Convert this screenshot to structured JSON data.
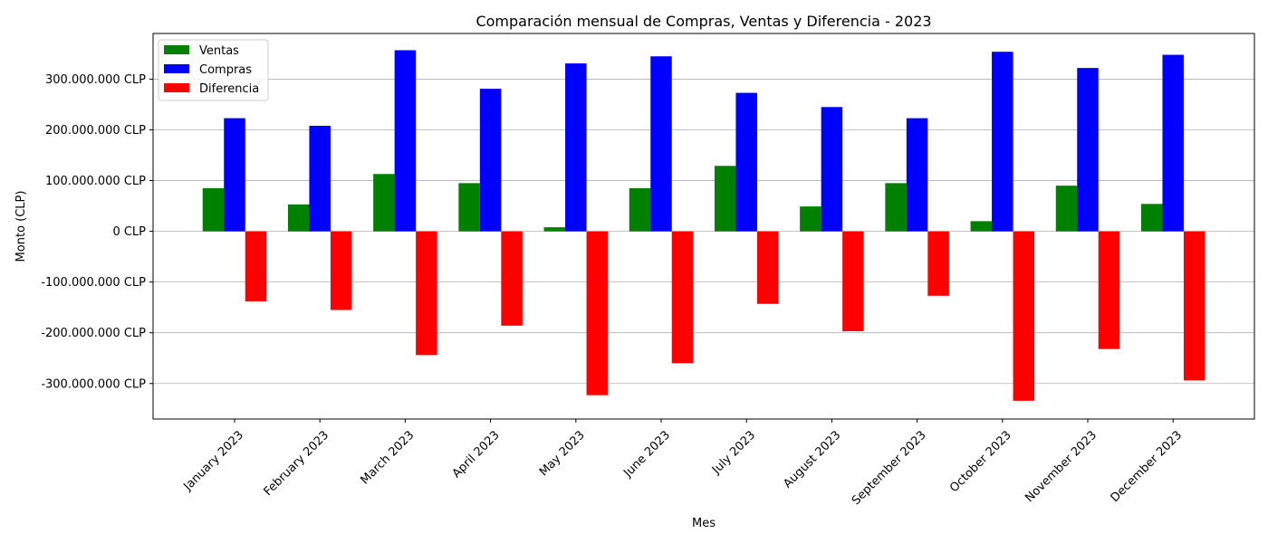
{
  "chart_data": {
    "type": "bar",
    "title": "Comparación mensual de Compras, Ventas y Diferencia - 2023",
    "xlabel": "Mes",
    "ylabel": "Monto (CLP)",
    "ylim": [
      -370000000,
      390000000
    ],
    "yticks": [
      300000000,
      200000000,
      100000000,
      0,
      -100000000,
      -200000000,
      -300000000
    ],
    "ytick_labels": [
      "300.000.000 CLP",
      "200.000.000 CLP",
      "100.000.000 CLP",
      "0 CLP",
      "-100.000.000 CLP",
      "-200.000.000 CLP",
      "-300.000.000 CLP"
    ],
    "grid": "horizontal",
    "legend_position": "top-left",
    "categories": [
      "January 2023",
      "February 2023",
      "March 2023",
      "April 2023",
      "May 2023",
      "June 2023",
      "July 2023",
      "August 2023",
      "September 2023",
      "October 2023",
      "November 2023",
      "December 2023"
    ],
    "series": [
      {
        "name": "Ventas",
        "color": "#008000",
        "values": [
          85000000,
          53000000,
          113000000,
          95000000,
          8000000,
          85000000,
          129000000,
          49000000,
          95000000,
          20000000,
          90000000,
          54000000
        ]
      },
      {
        "name": "Compras",
        "color": "#0000ff",
        "values": [
          223000000,
          208000000,
          357000000,
          281000000,
          331000000,
          345000000,
          273000000,
          245000000,
          223000000,
          354000000,
          322000000,
          348000000
        ]
      },
      {
        "name": "Diferencia",
        "color": "#ff0000",
        "values": [
          -138000000,
          -155000000,
          -244000000,
          -186000000,
          -323000000,
          -260000000,
          -143000000,
          -197000000,
          -127000000,
          -334000000,
          -232000000,
          -294000000
        ]
      }
    ]
  }
}
